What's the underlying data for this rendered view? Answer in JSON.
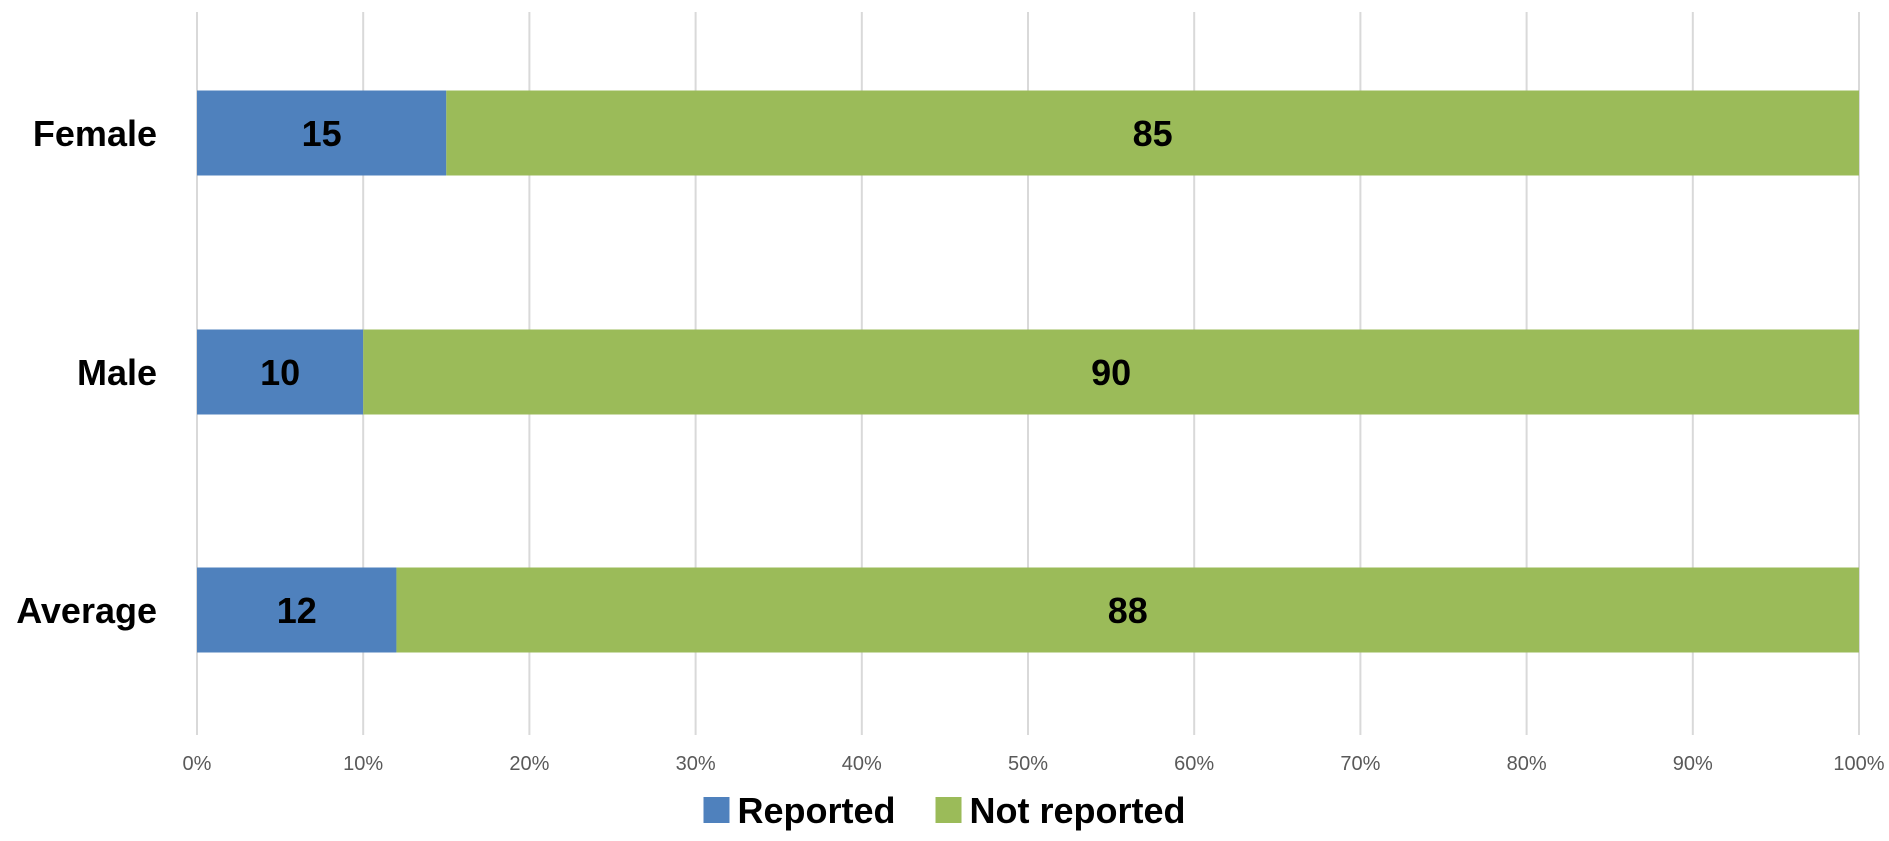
{
  "chart_data": {
    "type": "bar",
    "orientation": "horizontal",
    "stacked": true,
    "normalized": "percent",
    "categories": [
      "Female",
      "Male",
      "Average"
    ],
    "series": [
      {
        "name": "Reported",
        "values": [
          15,
          10,
          12
        ],
        "color": "#4F81BD"
      },
      {
        "name": "Not reported",
        "values": [
          85,
          90,
          88
        ],
        "color": "#9BBB59"
      }
    ],
    "xlim": [
      0,
      100
    ],
    "x_ticks": [
      "0%",
      "10%",
      "20%",
      "30%",
      "40%",
      "50%",
      "60%",
      "70%",
      "80%",
      "90%",
      "100%"
    ],
    "grid": "vertical",
    "legend": "bottom",
    "title": "",
    "xlabel": "",
    "ylabel": ""
  }
}
